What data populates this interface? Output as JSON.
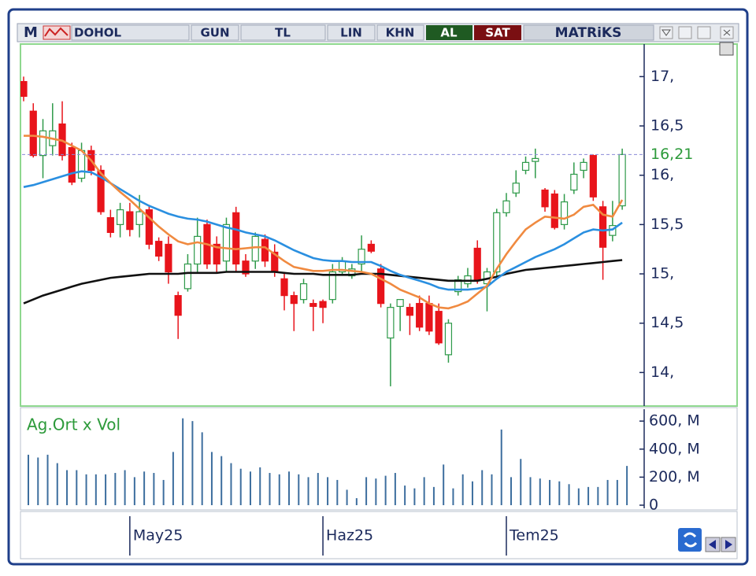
{
  "toolbar": {
    "logo": "M",
    "symbol": "DOHOL",
    "period": "GUN",
    "currency": "TL",
    "scale": "LIN",
    "chart_style": "KHN",
    "buy": "AL",
    "sell": "SAT",
    "brand": "MATRiKS"
  },
  "chart_data": {
    "type": "candlestick",
    "categories": [
      null,
      null,
      null,
      null,
      null,
      null,
      null,
      null,
      null,
      null,
      null,
      "May25",
      null,
      null,
      null,
      null,
      null,
      null,
      null,
      null,
      null,
      null,
      null,
      null,
      null,
      null,
      null,
      null,
      null,
      null,
      null,
      "Haz25",
      null,
      null,
      null,
      null,
      null,
      null,
      null,
      null,
      null,
      null,
      null,
      null,
      null,
      null,
      null,
      null,
      null,
      null,
      "Tem25",
      null,
      null,
      null,
      null,
      null,
      null,
      null,
      null,
      null,
      null,
      null,
      null
    ],
    "open": [
      16.95,
      16.65,
      16.2,
      16.3,
      16.52,
      16.28,
      15.97,
      16.25,
      16.05,
      15.57,
      15.5,
      15.63,
      15.5,
      15.65,
      15.33,
      15.3,
      14.78,
      14.85,
      15.1,
      15.5,
      15.3,
      15.13,
      15.62,
      15.13,
      15.13,
      15.35,
      15.22,
      14.95,
      14.78,
      14.74,
      14.7,
      14.72,
      14.74,
      15.02,
      14.98,
      15.1,
      15.3,
      15.05,
      14.35,
      14.67,
      14.66,
      14.7,
      14.7,
      14.62,
      14.18,
      14.82,
      14.9,
      15.26,
      14.9,
      15.02,
      15.62,
      15.82,
      16.05,
      16.14,
      15.85,
      15.81,
      15.5,
      15.85,
      16.05,
      16.2,
      15.68,
      15.39,
      15.69
    ],
    "high": [
      17.0,
      16.73,
      16.57,
      16.73,
      16.75,
      16.33,
      16.33,
      16.3,
      16.1,
      15.65,
      15.72,
      15.72,
      15.8,
      15.7,
      15.37,
      15.38,
      14.82,
      15.2,
      15.57,
      15.55,
      15.38,
      15.57,
      15.68,
      15.2,
      15.42,
      15.4,
      15.3,
      15.02,
      14.82,
      14.95,
      14.74,
      14.74,
      15.1,
      15.17,
      15.1,
      15.39,
      15.34,
      15.1,
      14.7,
      14.74,
      14.7,
      14.78,
      14.78,
      14.7,
      14.54,
      14.98,
      15.06,
      15.34,
      15.06,
      15.66,
      15.82,
      16.05,
      16.19,
      16.27,
      15.87,
      15.85,
      15.81,
      16.13,
      16.17,
      16.21,
      15.74,
      15.74,
      16.27
    ],
    "low": [
      16.75,
      16.18,
      15.97,
      16.2,
      16.15,
      15.9,
      15.93,
      16.0,
      15.6,
      15.37,
      15.37,
      15.38,
      15.37,
      15.25,
      15.13,
      14.9,
      14.34,
      14.82,
      15.02,
      15.05,
      15.02,
      15.02,
      15.02,
      14.97,
      15.05,
      15.07,
      14.97,
      14.63,
      14.42,
      14.7,
      14.42,
      14.5,
      14.7,
      14.98,
      14.95,
      15.02,
      15.21,
      14.66,
      13.86,
      14.42,
      14.38,
      14.42,
      14.38,
      14.28,
      14.1,
      14.78,
      14.86,
      14.9,
      14.62,
      14.98,
      15.58,
      15.78,
      16.01,
      15.97,
      15.63,
      15.45,
      15.45,
      15.81,
      15.97,
      15.74,
      14.94,
      15.33,
      15.65
    ],
    "close": [
      16.8,
      16.2,
      16.45,
      16.45,
      16.2,
      15.93,
      16.25,
      16.05,
      15.63,
      15.42,
      15.65,
      15.45,
      15.63,
      15.3,
      15.18,
      15.02,
      14.58,
      15.1,
      15.38,
      15.1,
      15.1,
      15.5,
      15.1,
      15.0,
      15.38,
      15.13,
      15.02,
      14.78,
      14.7,
      14.9,
      14.67,
      14.66,
      15.02,
      15.13,
      15.05,
      15.25,
      15.23,
      14.7,
      14.66,
      14.74,
      14.58,
      14.46,
      14.42,
      14.3,
      14.5,
      14.94,
      14.98,
      14.94,
      15.02,
      15.62,
      15.74,
      15.92,
      16.13,
      16.17,
      15.68,
      15.47,
      15.73,
      16.01,
      16.13,
      15.78,
      15.27,
      15.49,
      16.21
    ],
    "up_color": "#2f9a4a",
    "down_color": "#e8141b",
    "moving_averages": [
      {
        "color": "#111111",
        "values": [
          14.7,
          14.74,
          14.78,
          14.81,
          14.84,
          14.87,
          14.9,
          14.92,
          14.94,
          14.96,
          14.97,
          14.98,
          14.99,
          15.0,
          15.0,
          15.0,
          15.0,
          15.01,
          15.01,
          15.01,
          15.01,
          15.02,
          15.02,
          15.02,
          15.02,
          15.02,
          15.02,
          15.01,
          15.0,
          15.0,
          15.0,
          14.99,
          14.99,
          14.99,
          14.99,
          15.0,
          15.0,
          15.0,
          14.99,
          14.98,
          14.97,
          14.96,
          14.95,
          14.94,
          14.93,
          14.93,
          14.93,
          14.93,
          14.95,
          14.97,
          15.0,
          15.02,
          15.04,
          15.05,
          15.06,
          15.07,
          15.08,
          15.09,
          15.1,
          15.11,
          15.12,
          15.13,
          15.14
        ]
      },
      {
        "color": "#2a8fe0",
        "values": [
          15.88,
          15.9,
          15.93,
          15.96,
          15.99,
          16.02,
          16.04,
          16.03,
          15.98,
          15.92,
          15.86,
          15.8,
          15.74,
          15.69,
          15.65,
          15.61,
          15.58,
          15.56,
          15.55,
          15.53,
          15.5,
          15.47,
          15.45,
          15.42,
          15.4,
          15.38,
          15.34,
          15.29,
          15.24,
          15.2,
          15.16,
          15.14,
          15.13,
          15.13,
          15.12,
          15.12,
          15.12,
          15.08,
          15.03,
          14.99,
          14.96,
          14.93,
          14.9,
          14.86,
          14.84,
          14.84,
          14.84,
          14.85,
          14.87,
          14.95,
          15.02,
          15.07,
          15.12,
          15.17,
          15.21,
          15.25,
          15.3,
          15.36,
          15.42,
          15.45,
          15.44,
          15.45,
          15.52
        ]
      },
      {
        "color": "#f08a40",
        "values": [
          16.4,
          16.4,
          16.39,
          16.37,
          16.35,
          16.3,
          16.25,
          16.15,
          16.02,
          15.92,
          15.83,
          15.75,
          15.66,
          15.57,
          15.48,
          15.4,
          15.33,
          15.3,
          15.32,
          15.3,
          15.27,
          15.26,
          15.25,
          15.26,
          15.27,
          15.27,
          15.2,
          15.13,
          15.07,
          15.05,
          15.03,
          15.03,
          15.04,
          15.04,
          15.03,
          15.02,
          15.0,
          14.95,
          14.9,
          14.84,
          14.8,
          14.76,
          14.7,
          14.66,
          14.65,
          14.68,
          14.72,
          14.8,
          14.88,
          15.05,
          15.2,
          15.33,
          15.45,
          15.52,
          15.58,
          15.57,
          15.56,
          15.6,
          15.68,
          15.7,
          15.6,
          15.58,
          15.75
        ]
      }
    ],
    "ylim": [
      13.66,
      17.33
    ],
    "yticks": [
      {
        "value": 17,
        "label": "17,"
      },
      {
        "value": 16.5,
        "label": "16,5"
      },
      {
        "value": 16,
        "label": "16,"
      },
      {
        "value": 15.5,
        "label": "15,5"
      },
      {
        "value": 15,
        "label": "15,"
      },
      {
        "value": 14.5,
        "label": "14,5"
      },
      {
        "value": 14,
        "label": "14,"
      }
    ],
    "last_price": {
      "value": 16.21,
      "label": "16,21"
    },
    "volume": {
      "label": "Ag.Ort x Vol",
      "color": "#3d6e9e",
      "values": [
        360,
        340,
        360,
        300,
        250,
        250,
        220,
        220,
        220,
        230,
        250,
        200,
        240,
        230,
        180,
        380,
        620,
        600,
        520,
        380,
        350,
        300,
        260,
        240,
        270,
        230,
        220,
        240,
        220,
        200,
        230,
        200,
        180,
        110,
        50,
        200,
        190,
        210,
        230,
        140,
        120,
        200,
        130,
        290,
        120,
        220,
        170,
        250,
        220,
        540,
        200,
        330,
        200,
        190,
        180,
        170,
        150,
        120,
        130,
        130,
        180,
        180,
        280
      ],
      "ylim": [
        0,
        685
      ],
      "yticks": [
        {
          "value": 600,
          "label": "600, M"
        },
        {
          "value": 400,
          "label": "400, M"
        },
        {
          "value": 200,
          "label": "200, M"
        },
        0
      ]
    }
  }
}
